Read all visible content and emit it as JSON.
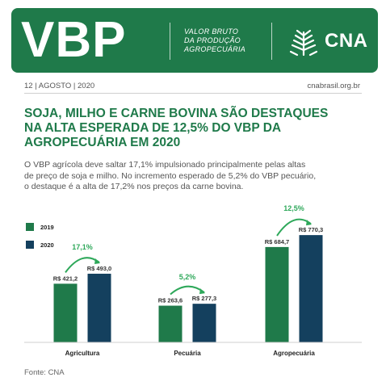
{
  "header": {
    "logo_text": "VBP",
    "subtitle_lines": [
      "VALOR BRUTO",
      "DA PRODUÇÃO",
      "AGROPECUÁRIA"
    ],
    "brand": "CNA",
    "brand_color": "#1f7a4a"
  },
  "meta": {
    "date": "12 | AGOSTO | 2020",
    "site": "cnabrasil.org.br"
  },
  "headline_lines": [
    "SOJA, MILHO E CARNE BOVINA SÃO DESTAQUES",
    "NA ALTA ESPERADA DE 12,5% DO VBP DA",
    "AGROPECUÁRIA EM 2020"
  ],
  "body_lines": [
    "O VBP agrícola deve saltar 17,1% impulsionado principalmente pelas altas",
    "de preço de soja e milho. No incremento esperado de 5,2% do VBP pecuário,",
    "o destaque é a alta de 17,2% nos preços da carne bovina."
  ],
  "source": "Fonte: CNA",
  "chart_data": {
    "type": "bar",
    "categories": [
      "Agricultura",
      "Pecuária",
      "Agropecuária"
    ],
    "series": [
      {
        "name": "2019",
        "color": "#1f7a4a",
        "values": [
          421.2,
          263.6,
          684.7
        ],
        "labels": [
          "R$ 421,2",
          "R$ 263,6",
          "R$ 684,7"
        ]
      },
      {
        "name": "2020",
        "color": "#14405e",
        "values": [
          493.0,
          277.3,
          770.3
        ],
        "labels": [
          "R$ 493,0",
          "R$ 277,3",
          "R$ 770,3"
        ]
      }
    ],
    "growth_labels": [
      "17,1%",
      "5,2%",
      "12,5%"
    ],
    "growth_color": "#2ea85a",
    "legend_position": "top-left",
    "ylim": [
      0,
      800
    ],
    "grid": false
  }
}
